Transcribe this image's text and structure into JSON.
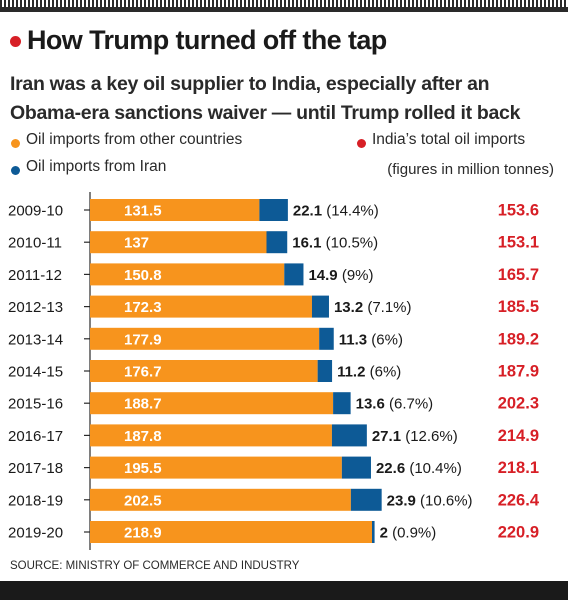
{
  "header": {
    "title": "How Trump turned off the tap",
    "subtitle": "Iran was a key oil supplier to India, especially after an Obama-era sanctions waiver — until Trump rolled it back"
  },
  "legend": {
    "other": "Oil imports from other countries",
    "iran": "Oil imports from Iran",
    "total": "India’s total oil imports",
    "units": "(figures in million tonnes)"
  },
  "colors": {
    "other": "#f7941d",
    "iran": "#0d5a96",
    "total": "#d71f26",
    "text": "#1a1a1a"
  },
  "chart_data": {
    "type": "bar",
    "orientation": "horizontal",
    "stacked": true,
    "categories": [
      "2009-10",
      "2010-11",
      "2011-12",
      "2012-13",
      "2013-14",
      "2014-15",
      "2015-16",
      "2016-17",
      "2017-18",
      "2018-19",
      "2019-20"
    ],
    "series": [
      {
        "name": "Oil imports from other countries",
        "values": [
          131.5,
          137,
          150.8,
          172.3,
          177.9,
          176.7,
          188.7,
          187.8,
          195.5,
          202.5,
          218.9
        ]
      },
      {
        "name": "Oil imports from Iran",
        "values": [
          22.1,
          16.1,
          14.9,
          13.2,
          11.3,
          11.2,
          13.6,
          27.1,
          22.6,
          23.9,
          2
        ]
      }
    ],
    "iran_labels": [
      "22.1",
      "16.1",
      "14.9",
      "13.2",
      "11.3",
      "11.2",
      "13.6",
      "27.1",
      "22.6",
      "23.9",
      "2"
    ],
    "iran_share_labels": [
      "(14.4%)",
      "(10.5%)",
      "(9%)",
      "(7.1%)",
      "(6%)",
      "(6%)",
      "(6.7%)",
      "(12.6%)",
      "(10.4%)",
      "(10.6%)",
      "(0.9%)"
    ],
    "other_labels": [
      "131.5",
      "137",
      "150.8",
      "172.3",
      "177.9",
      "176.7",
      "188.7",
      "187.8",
      "195.5",
      "202.5",
      "218.9"
    ],
    "totals": [
      "153.6",
      "153.1",
      "165.7",
      "185.5",
      "189.2",
      "187.9",
      "202.3",
      "214.9",
      "218.1",
      "226.4",
      "220.9"
    ],
    "xlim": [
      0,
      226.4
    ],
    "grid": false,
    "legend_position": "top"
  },
  "source": "SOURCE: MINISTRY OF COMMERCE AND INDUSTRY"
}
